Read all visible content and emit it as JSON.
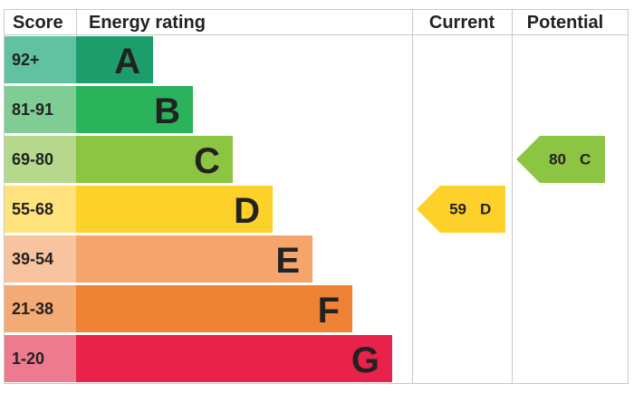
{
  "header": {
    "score": "Score",
    "rating": "Energy rating",
    "current": "Current",
    "potential": "Potential"
  },
  "bands": [
    {
      "score": "92+",
      "letter": "A",
      "color": "#1d9d6c",
      "light": "#60c2a0"
    },
    {
      "score": "81-91",
      "letter": "B",
      "color": "#2bb35c",
      "light": "#7fcc95"
    },
    {
      "score": "69-80",
      "letter": "C",
      "color": "#8cc541",
      "light": "#b5d88c"
    },
    {
      "score": "55-68",
      "letter": "D",
      "color": "#fed12a",
      "light": "#ffe27c"
    },
    {
      "score": "39-54",
      "letter": "E",
      "color": "#f5a56c",
      "light": "#f8c4a0"
    },
    {
      "score": "21-38",
      "letter": "F",
      "color": "#ee8235",
      "light": "#f3aa74"
    },
    {
      "score": "1-20",
      "letter": "G",
      "color": "#e8224a",
      "light": "#ee7a90"
    }
  ],
  "current": {
    "value": 59,
    "letter": "D"
  },
  "potential": {
    "value": 80,
    "letter": "C"
  }
}
